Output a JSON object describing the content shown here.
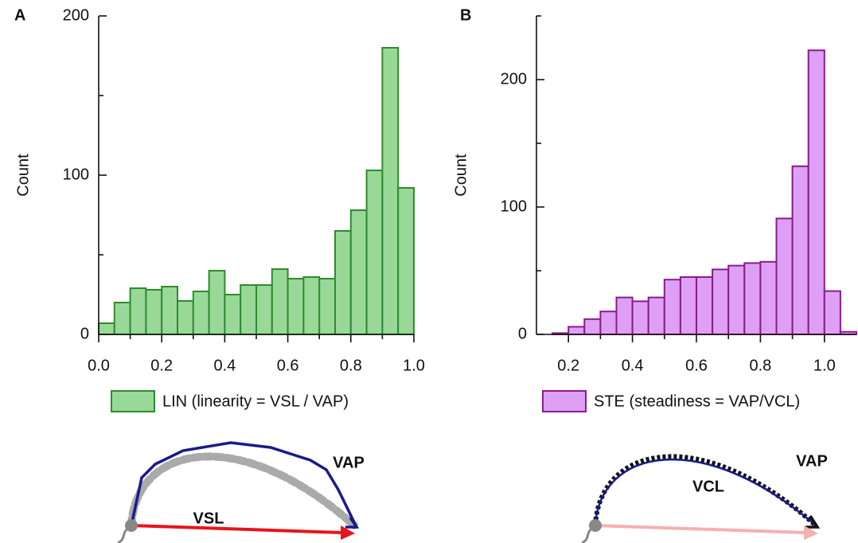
{
  "chart_data": [
    {
      "type": "histogram",
      "panel_label": "A",
      "ylabel": "Count",
      "legend_label": "LIN (linearity = VSL / VAP)",
      "bins": [
        0,
        0.05,
        0.1,
        0.15,
        0.2,
        0.25,
        0.3,
        0.35,
        0.4,
        0.45,
        0.5,
        0.55,
        0.6,
        0.65,
        0.7,
        0.75,
        0.8,
        0.85,
        0.9,
        0.95,
        1.0
      ],
      "counts": [
        7,
        20,
        29,
        28,
        30,
        21,
        27,
        40,
        25,
        31,
        31,
        41,
        35,
        36,
        35,
        65,
        78,
        103,
        180,
        92
      ],
      "color": "#98d998",
      "edgecolor": "#2f8a2f",
      "xlim": [
        0,
        1
      ],
      "ylim": [
        0,
        200
      ],
      "xticks": [
        {
          "value": 0,
          "label": "0.0"
        },
        0.2,
        0.4,
        0.6,
        0.8,
        {
          "value": 1,
          "label": "1.0"
        }
      ],
      "xminor_ticks": [
        0.1,
        0.3,
        0.5,
        0.7,
        0.9
      ],
      "yticks": [
        0,
        100,
        200
      ],
      "yminor_ticks": [
        50,
        150
      ],
      "annotations": [
        {
          "text": "VAP",
          "color": "#1a1a8c"
        },
        {
          "text": "VSL",
          "color": "#e8141c"
        }
      ]
    },
    {
      "type": "histogram",
      "panel_label": "B",
      "ylabel": "Count",
      "legend_label": "STE (steadiness = VAP/VCL)",
      "bins": [
        0.15,
        0.2,
        0.25,
        0.3,
        0.35,
        0.4,
        0.45,
        0.5,
        0.55,
        0.6,
        0.65,
        0.7,
        0.75,
        0.8,
        0.85,
        0.9,
        0.95,
        1.0,
        1.05,
        1.1
      ],
      "counts": [
        1,
        6,
        12,
        18,
        29,
        26,
        29,
        43,
        45,
        45,
        51,
        54,
        56,
        57,
        91,
        132,
        223,
        34,
        2
      ],
      "color": "#dda0f5",
      "edgecolor": "#8b1a8b",
      "xlim": [
        0.1,
        1.1
      ],
      "ylim": [
        0,
        250
      ],
      "xticks": [
        0.2,
        0.4,
        0.6,
        0.8,
        {
          "value": 1,
          "label": "1.0"
        }
      ],
      "xminor_ticks": [
        0.3,
        0.5,
        0.7,
        0.9
      ],
      "yticks": [
        0,
        100,
        200
      ],
      "yminor_ticks": [
        50,
        150,
        250
      ],
      "annotations": [
        {
          "text": "VCL",
          "color": "#111111"
        },
        {
          "text": "VAP",
          "color": "#1a1a8c"
        }
      ]
    }
  ]
}
